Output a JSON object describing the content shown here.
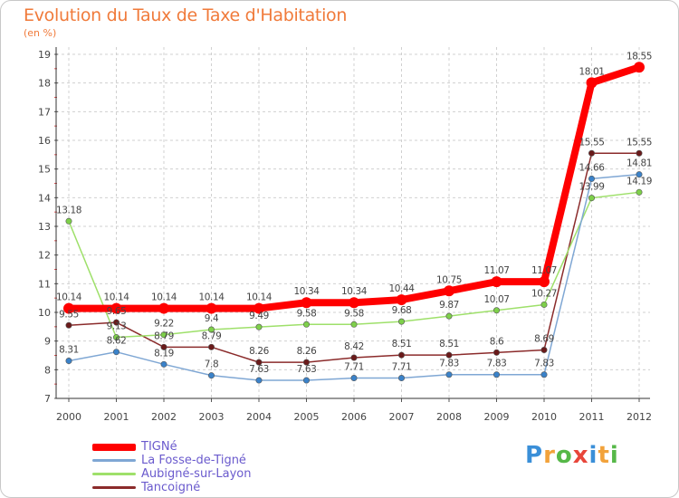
{
  "header": {
    "title": "Evolution du Taux de Taxe d'Habitation",
    "subtitle": "(en %)"
  },
  "logo": {
    "letters": [
      {
        "ch": "P",
        "color": "#3a8fd8"
      },
      {
        "ch": "r",
        "color": "#f2a23a"
      },
      {
        "ch": "o",
        "color": "#56b848"
      },
      {
        "ch": "x",
        "color": "#e8463a"
      },
      {
        "ch": "i",
        "color": "#3a8fd8"
      },
      {
        "ch": "t",
        "color": "#f2a23a"
      },
      {
        "ch": "i",
        "color": "#56b848"
      }
    ]
  },
  "chart_data": {
    "type": "line",
    "title": "Evolution du Taux de Taxe d'Habitation",
    "ylabel": "(en %)",
    "categories": [
      "2000",
      "2001",
      "2002",
      "2003",
      "2004",
      "2005",
      "2006",
      "2007",
      "2008",
      "2009",
      "2010",
      "2011",
      "2012"
    ],
    "ylim": [
      7,
      19
    ],
    "yticks": [
      7,
      8,
      9,
      10,
      11,
      12,
      13,
      14,
      15,
      16,
      17,
      18,
      19
    ],
    "grid": true,
    "legend_position": "bottom-left",
    "series": [
      {
        "name": "TIGNé",
        "color": "#ff0000",
        "marker_color": "#ff0000",
        "width": 8,
        "values": [
          10.14,
          10.14,
          10.14,
          10.14,
          10.14,
          10.34,
          10.34,
          10.44,
          10.75,
          11.07,
          11.07,
          18.01,
          18.55
        ],
        "labels": [
          "10.14",
          "10.14",
          "10.14",
          "10.14",
          "10.14",
          "10.34",
          "10.34",
          "10.44",
          "10.75",
          "11.07",
          "11.07",
          "18.01",
          "18.55"
        ]
      },
      {
        "name": "La Fosse-de-Tigné",
        "color": "#7fa7d4",
        "marker_color": "#3a82c9",
        "width": 1.5,
        "values": [
          8.31,
          8.62,
          8.19,
          7.8,
          7.63,
          7.63,
          7.71,
          7.71,
          7.83,
          7.83,
          7.83,
          14.66,
          14.81
        ],
        "labels": [
          "8.31",
          "8.62",
          "8.19",
          "7.8",
          "7.63",
          "7.63",
          "7.71",
          "7.71",
          "7.83",
          "7.83",
          "7.83",
          "14.66",
          "14.81"
        ]
      },
      {
        "name": "Aubigné-sur-Layon",
        "color": "#9ee06a",
        "marker_color": "#7ed04a",
        "width": 1.5,
        "values": [
          13.18,
          9.13,
          9.22,
          9.4,
          9.49,
          9.58,
          9.58,
          9.68,
          9.87,
          10.07,
          10.27,
          13.99,
          14.19
        ],
        "labels": [
          "13.18",
          "9.13",
          "9.22",
          "9.4",
          "9.49",
          "9.58",
          "9.58",
          "9.68",
          "9.87",
          "10.07",
          "10.27",
          "13.99",
          "14.19"
        ]
      },
      {
        "name": "Tancoigné",
        "color": "#8b2b2b",
        "marker_color": "#6a1a1a",
        "width": 1.5,
        "values": [
          9.55,
          9.65,
          8.79,
          8.79,
          8.26,
          8.26,
          8.42,
          8.51,
          8.51,
          8.6,
          8.69,
          15.55,
          15.55
        ],
        "labels": [
          "9.55",
          "9.65",
          "8.79",
          "8.79",
          "8.26",
          "8.26",
          "8.42",
          "8.51",
          "8.51",
          "8.6",
          "8.69",
          "15.55",
          "15.55"
        ]
      }
    ]
  }
}
